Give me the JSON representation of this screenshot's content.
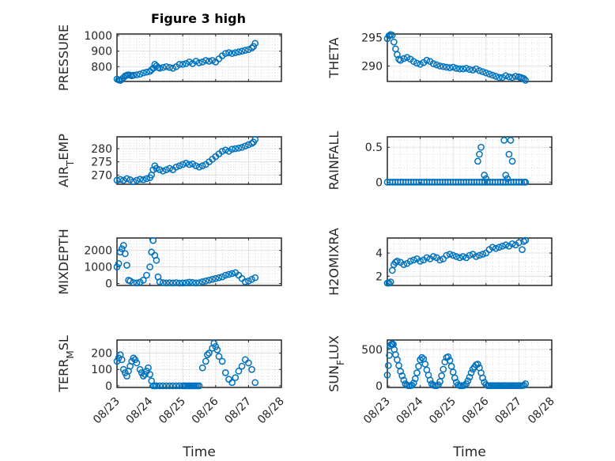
{
  "figure": {
    "title": "Figure 3 high",
    "marker_color": "#0072bd"
  },
  "chart_data": [
    {
      "type": "scatter",
      "ylabel": "PRESSURE",
      "xlabel": "",
      "ylim": [
        705,
        1010
      ],
      "yticks": [
        800,
        900,
        1000
      ],
      "xlim": [
        0,
        5
      ],
      "xtick_labels": [
        "08/23",
        "08/24",
        "08/25",
        "08/26",
        "08/27",
        "08/28"
      ],
      "show_xtick_labels": false,
      "grid": true,
      "x": [
        0.0,
        0.05,
        0.1,
        0.15,
        0.2,
        0.25,
        0.3,
        0.35,
        0.4,
        0.45,
        0.5,
        0.6,
        0.7,
        0.8,
        0.9,
        1.0,
        1.05,
        1.1,
        1.15,
        1.2,
        1.25,
        1.3,
        1.4,
        1.5,
        1.6,
        1.7,
        1.8,
        1.9,
        2.0,
        2.1,
        2.2,
        2.3,
        2.4,
        2.5,
        2.6,
        2.7,
        2.8,
        2.9,
        3.0,
        3.1,
        3.2,
        3.3,
        3.4,
        3.5,
        3.6,
        3.7,
        3.8,
        3.9,
        4.0,
        4.1,
        4.15,
        4.2
      ],
      "y": [
        720,
        715,
        712,
        720,
        730,
        740,
        745,
        748,
        745,
        742,
        745,
        748,
        752,
        760,
        765,
        770,
        780,
        790,
        815,
        805,
        795,
        790,
        795,
        800,
        795,
        790,
        800,
        815,
        815,
        820,
        830,
        820,
        835,
        825,
        830,
        840,
        835,
        840,
        830,
        850,
        870,
        885,
        890,
        885,
        890,
        895,
        900,
        905,
        910,
        920,
        930,
        950
      ]
    },
    {
      "type": "scatter",
      "ylabel": "THETA",
      "xlabel": "",
      "ylim": [
        287.3,
        295.6
      ],
      "yticks": [
        290,
        295
      ],
      "xlim": [
        0,
        5
      ],
      "xtick_labels": [
        "08/23",
        "08/24",
        "08/25",
        "08/26",
        "08/27",
        "08/28"
      ],
      "show_xtick_labels": false,
      "grid": true,
      "x": [
        0.0,
        0.05,
        0.1,
        0.15,
        0.2,
        0.25,
        0.3,
        0.35,
        0.4,
        0.5,
        0.6,
        0.7,
        0.8,
        0.9,
        1.0,
        1.1,
        1.2,
        1.3,
        1.4,
        1.5,
        1.6,
        1.7,
        1.8,
        1.9,
        2.0,
        2.1,
        2.2,
        2.3,
        2.4,
        2.5,
        2.6,
        2.7,
        2.8,
        2.9,
        3.0,
        3.1,
        3.2,
        3.3,
        3.4,
        3.5,
        3.6,
        3.7,
        3.8,
        3.9,
        4.0,
        4.05,
        4.1,
        4.15,
        4.2
      ],
      "y": [
        294.8,
        295.3,
        295.5,
        295.4,
        294.2,
        293.0,
        292.0,
        291.2,
        291.0,
        291.3,
        291.5,
        291.2,
        290.8,
        290.5,
        290.3,
        290.6,
        291.0,
        290.8,
        290.4,
        290.2,
        290.0,
        289.9,
        289.8,
        289.7,
        289.8,
        289.6,
        289.5,
        289.5,
        289.6,
        289.4,
        289.3,
        289.5,
        289.2,
        289.0,
        288.8,
        288.6,
        288.4,
        288.2,
        288.0,
        288.0,
        288.3,
        288.1,
        288.0,
        288.2,
        288.1,
        288.0,
        287.9,
        287.8,
        287.5
      ]
    },
    {
      "type": "scatter",
      "ylabel": "AIR_TEMP",
      "xlabel": "",
      "ylim": [
        266.5,
        284.5
      ],
      "yticks": [
        270,
        275,
        280
      ],
      "xlim": [
        0,
        5
      ],
      "xtick_labels": [
        "08/23",
        "08/24",
        "08/25",
        "08/26",
        "08/27",
        "08/28"
      ],
      "show_xtick_labels": false,
      "grid": true,
      "x": [
        0.0,
        0.1,
        0.2,
        0.3,
        0.4,
        0.5,
        0.6,
        0.7,
        0.8,
        0.9,
        1.0,
        1.05,
        1.1,
        1.15,
        1.2,
        1.3,
        1.4,
        1.5,
        1.6,
        1.7,
        1.8,
        1.9,
        2.0,
        2.1,
        2.2,
        2.3,
        2.4,
        2.5,
        2.6,
        2.7,
        2.8,
        2.9,
        3.0,
        3.1,
        3.2,
        3.3,
        3.4,
        3.5,
        3.6,
        3.7,
        3.8,
        3.9,
        4.0,
        4.1,
        4.15,
        4.2
      ],
      "y": [
        268.0,
        268.3,
        268.0,
        268.6,
        268.2,
        267.5,
        268.0,
        268.4,
        268.2,
        268.6,
        269.0,
        270.0,
        272.0,
        273.5,
        272.5,
        272.0,
        271.5,
        272.0,
        272.5,
        272.0,
        273.0,
        273.5,
        274.0,
        274.5,
        274.0,
        274.2,
        273.5,
        273.0,
        273.5,
        274.0,
        275.0,
        276.0,
        277.0,
        278.0,
        279.0,
        279.5,
        279.0,
        279.8,
        280.0,
        280.2,
        280.5,
        281.0,
        281.5,
        282.0,
        282.5,
        283.5
      ]
    },
    {
      "type": "scatter",
      "ylabel": "RAINFALL",
      "xlabel": "",
      "ylim": [
        -0.03,
        0.65
      ],
      "yticks": [
        0,
        0.5
      ],
      "xlim": [
        0,
        5
      ],
      "xtick_labels": [
        "08/23",
        "08/24",
        "08/25",
        "08/26",
        "08/27",
        "08/28"
      ],
      "show_xtick_labels": false,
      "grid": true,
      "x": [
        0.0,
        0.08,
        0.16,
        0.24,
        0.32,
        0.4,
        0.48,
        0.56,
        0.64,
        0.72,
        0.8,
        0.88,
        0.96,
        1.04,
        1.12,
        1.2,
        1.28,
        1.36,
        1.44,
        1.52,
        1.6,
        1.68,
        1.76,
        1.84,
        1.92,
        2.0,
        2.08,
        2.16,
        2.24,
        2.32,
        2.4,
        2.48,
        2.56,
        2.64,
        2.72,
        2.8,
        2.88,
        2.96,
        3.04,
        3.12,
        3.2,
        3.28,
        3.36,
        3.44,
        3.52,
        3.6,
        3.68,
        3.76,
        3.84,
        3.92,
        4.0,
        4.08,
        4.16,
        4.2,
        2.75,
        2.8,
        2.85,
        2.95,
        3.0,
        3.55,
        3.6,
        3.65,
        3.7,
        3.75,
        3.8
      ],
      "y": [
        0,
        0,
        0,
        0,
        0,
        0,
        0,
        0,
        0,
        0,
        0,
        0,
        0,
        0,
        0,
        0,
        0,
        0,
        0,
        0,
        0,
        0,
        0,
        0,
        0,
        0,
        0,
        0,
        0,
        0,
        0,
        0,
        0,
        0,
        0,
        0,
        0,
        0,
        0,
        0,
        0,
        0,
        0,
        0,
        0,
        0,
        0,
        0,
        0,
        0,
        0,
        0,
        0,
        0,
        0.3,
        0.4,
        0.5,
        0.1,
        0.05,
        0.6,
        0.1,
        0.05,
        0.4,
        0.6,
        0.3
      ]
    },
    {
      "type": "scatter",
      "ylabel": "MIXDEPTH",
      "xlabel": "",
      "ylim": [
        -120,
        2750
      ],
      "yticks": [
        0,
        1000,
        2000
      ],
      "xlim": [
        0,
        5
      ],
      "xtick_labels": [
        "08/23",
        "08/24",
        "08/25",
        "08/26",
        "08/27",
        "08/28"
      ],
      "show_xtick_labels": false,
      "grid": true,
      "x": [
        0.0,
        0.05,
        0.1,
        0.15,
        0.2,
        0.25,
        0.3,
        0.35,
        0.4,
        0.5,
        0.6,
        0.7,
        0.8,
        0.9,
        1.0,
        1.05,
        1.1,
        1.15,
        1.2,
        1.25,
        1.3,
        1.4,
        1.5,
        1.6,
        1.7,
        1.8,
        1.9,
        2.0,
        2.1,
        2.2,
        2.3,
        2.4,
        2.5,
        2.6,
        2.7,
        2.8,
        2.9,
        3.0,
        3.1,
        3.2,
        3.3,
        3.4,
        3.5,
        3.6,
        3.7,
        3.8,
        3.9,
        4.0,
        4.1,
        4.2
      ],
      "y": [
        1000,
        1200,
        1900,
        2100,
        2300,
        1800,
        1100,
        200,
        150,
        50,
        30,
        80,
        200,
        500,
        1000,
        1900,
        2600,
        1700,
        1400,
        400,
        100,
        50,
        30,
        40,
        30,
        50,
        20,
        30,
        40,
        80,
        60,
        30,
        40,
        100,
        150,
        200,
        250,
        300,
        350,
        400,
        500,
        550,
        600,
        650,
        500,
        300,
        100,
        150,
        250,
        350
      ]
    },
    {
      "type": "scatter",
      "ylabel": "H2OMIXRA",
      "xlabel": "",
      "ylim": [
        1.2,
        5.3
      ],
      "yticks": [
        2,
        4
      ],
      "xlim": [
        0,
        5
      ],
      "xtick_labels": [
        "08/23",
        "08/24",
        "08/25",
        "08/26",
        "08/27",
        "08/28"
      ],
      "show_xtick_labels": false,
      "grid": true,
      "x": [
        0.0,
        0.05,
        0.1,
        0.15,
        0.2,
        0.25,
        0.3,
        0.4,
        0.5,
        0.6,
        0.7,
        0.8,
        0.9,
        1.0,
        1.1,
        1.2,
        1.3,
        1.4,
        1.5,
        1.6,
        1.7,
        1.8,
        1.9,
        2.0,
        2.1,
        2.2,
        2.3,
        2.4,
        2.5,
        2.6,
        2.7,
        2.8,
        2.9,
        3.0,
        3.1,
        3.2,
        3.3,
        3.4,
        3.5,
        3.6,
        3.7,
        3.8,
        3.9,
        4.0,
        4.1,
        4.15,
        4.2
      ],
      "y": [
        1.4,
        1.4,
        1.5,
        2.5,
        3.0,
        3.2,
        3.3,
        3.2,
        3.0,
        3.1,
        3.3,
        3.4,
        3.5,
        3.3,
        3.4,
        3.6,
        3.5,
        3.7,
        3.6,
        3.4,
        3.5,
        3.8,
        3.9,
        3.8,
        3.7,
        3.6,
        3.7,
        3.6,
        3.8,
        3.9,
        3.7,
        3.8,
        3.9,
        4.0,
        4.3,
        4.5,
        4.4,
        4.5,
        4.6,
        4.7,
        4.6,
        4.8,
        4.7,
        4.9,
        4.3,
        5.0,
        5.1
      ]
    },
    {
      "type": "scatter",
      "ylabel": "TERR_MSL",
      "xlabel": "Time",
      "ylim": [
        -10,
        280
      ],
      "yticks": [
        0,
        100,
        200
      ],
      "xlim": [
        0,
        5
      ],
      "xtick_labels": [
        "08/23",
        "08/24",
        "08/25",
        "08/26",
        "08/27",
        "08/28"
      ],
      "show_xtick_labels": true,
      "grid": true,
      "x": [
        0.0,
        0.05,
        0.1,
        0.15,
        0.2,
        0.25,
        0.3,
        0.35,
        0.4,
        0.45,
        0.5,
        0.55,
        0.6,
        0.7,
        0.75,
        0.8,
        0.85,
        0.9,
        0.95,
        1.0,
        1.05,
        1.1,
        1.15,
        1.2,
        1.3,
        1.4,
        1.5,
        1.6,
        1.7,
        1.8,
        1.9,
        2.0,
        2.05,
        2.1,
        2.15,
        2.2,
        2.25,
        2.3,
        2.35,
        2.4,
        2.45,
        2.5,
        2.6,
        2.7,
        2.75,
        2.8,
        2.9,
        2.95,
        3.0,
        3.05,
        3.1,
        3.2,
        3.3,
        3.4,
        3.5,
        3.6,
        3.7,
        3.8,
        3.9,
        4.0,
        4.1,
        4.2
      ],
      "y": [
        150,
        170,
        190,
        160,
        100,
        80,
        60,
        90,
        120,
        150,
        170,
        160,
        140,
        100,
        80,
        60,
        70,
        90,
        110,
        70,
        30,
        0,
        0,
        0,
        0,
        0,
        0,
        0,
        0,
        0,
        0,
        0,
        0,
        0,
        0,
        0,
        0,
        0,
        0,
        0,
        0,
        0,
        110,
        150,
        190,
        200,
        230,
        260,
        240,
        220,
        180,
        150,
        80,
        40,
        20,
        50,
        90,
        120,
        160,
        140,
        100,
        20
      ]
    },
    {
      "type": "scatter",
      "ylabel": "SUN_FLUX",
      "xlabel": "Time",
      "ylim": [
        -20,
        630
      ],
      "yticks": [
        0,
        500
      ],
      "xlim": [
        0,
        5
      ],
      "xtick_labels": [
        "08/23",
        "08/24",
        "08/25",
        "08/26",
        "08/27",
        "08/28"
      ],
      "show_xtick_labels": true,
      "grid": true,
      "x": [
        0.0,
        0.03,
        0.06,
        0.09,
        0.12,
        0.15,
        0.18,
        0.21,
        0.25,
        0.3,
        0.35,
        0.4,
        0.45,
        0.5,
        0.55,
        0.6,
        0.65,
        0.7,
        0.75,
        0.8,
        0.85,
        0.9,
        0.95,
        1.0,
        1.05,
        1.1,
        1.15,
        1.2,
        1.25,
        1.3,
        1.35,
        1.4,
        1.45,
        1.5,
        1.55,
        1.6,
        1.65,
        1.7,
        1.75,
        1.8,
        1.85,
        1.9,
        1.95,
        2.0,
        2.05,
        2.1,
        2.15,
        2.2,
        2.25,
        2.3,
        2.35,
        2.4,
        2.45,
        2.5,
        2.55,
        2.6,
        2.65,
        2.7,
        2.75,
        2.8,
        2.85,
        2.9,
        2.95,
        3.0,
        3.05,
        3.1,
        3.15,
        3.2,
        3.25,
        3.3,
        3.35,
        3.4,
        3.45,
        3.5,
        3.55,
        3.6,
        3.65,
        3.7,
        3.75,
        3.8,
        3.85,
        3.9,
        3.95,
        4.0,
        4.05,
        4.1,
        4.15,
        4.2
      ],
      "y": [
        150,
        280,
        420,
        550,
        570,
        580,
        570,
        500,
        430,
        360,
        280,
        200,
        140,
        80,
        30,
        10,
        5,
        5,
        10,
        40,
        100,
        180,
        270,
        360,
        390,
        370,
        300,
        220,
        150,
        80,
        30,
        10,
        5,
        5,
        15,
        60,
        140,
        230,
        330,
        390,
        400,
        350,
        270,
        190,
        110,
        50,
        15,
        5,
        5,
        5,
        10,
        30,
        70,
        120,
        180,
        230,
        260,
        290,
        300,
        250,
        180,
        110,
        50,
        20,
        5,
        5,
        5,
        5,
        5,
        5,
        5,
        5,
        5,
        5,
        5,
        5,
        5,
        5,
        5,
        5,
        5,
        5,
        5,
        5,
        5,
        5,
        10,
        30
      ]
    }
  ]
}
